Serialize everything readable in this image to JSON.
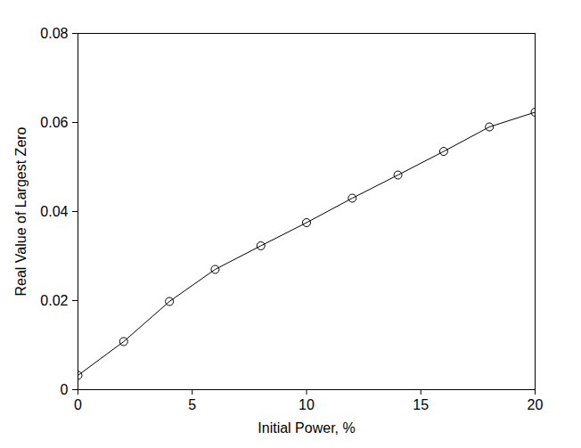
{
  "chart_data": {
    "type": "line",
    "x_label": "Initial Power, %",
    "y_label": "Real Value of Largest Zero",
    "x": [
      0,
      2,
      4,
      6,
      8,
      10,
      12,
      14,
      16,
      18,
      20
    ],
    "values": [
      0.0032,
      0.0108,
      0.0198,
      0.027,
      0.0323,
      0.0375,
      0.043,
      0.0482,
      0.0535,
      0.059,
      0.0623
    ],
    "color": "#000000",
    "marker": "circle",
    "line_style": "solid",
    "xlim": [
      0,
      20
    ],
    "xticks": [
      0,
      5,
      10,
      15,
      20
    ],
    "ylim": [
      0,
      0.08
    ],
    "yticks": [
      0,
      0.02,
      0.04,
      0.06,
      0.08
    ],
    "grid": false
  }
}
